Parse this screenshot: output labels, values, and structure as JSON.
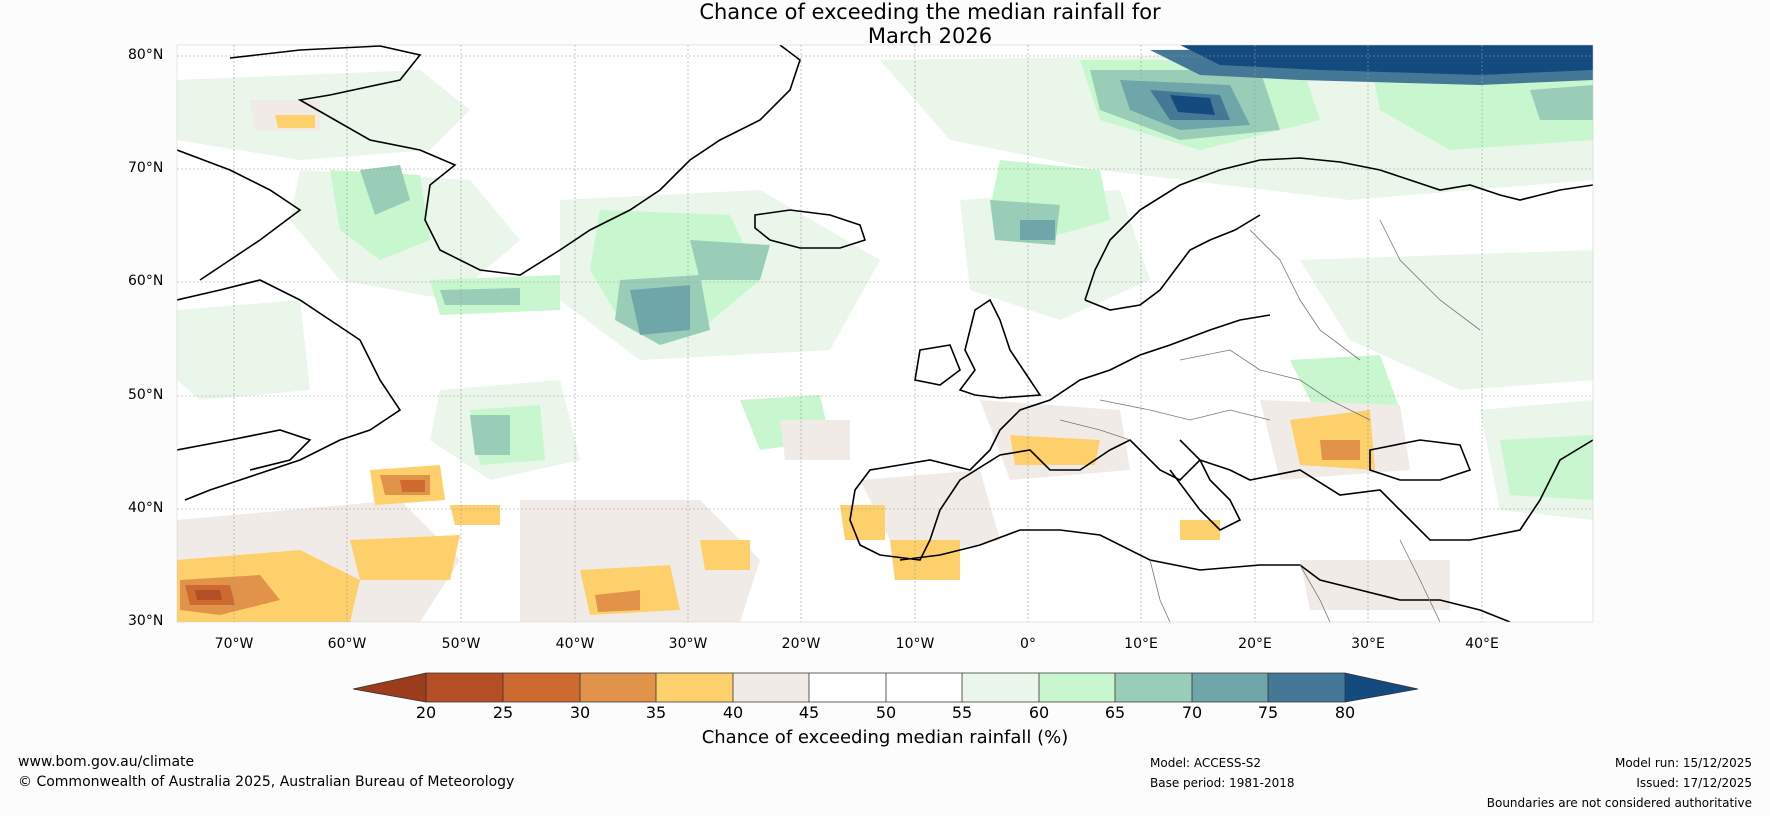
{
  "title": {
    "line1": "Chance of exceeding the median rainfall for",
    "line2": "March 2026"
  },
  "map": {
    "latitudes": [
      "80°N",
      "70°N",
      "60°N",
      "50°N",
      "40°N",
      "30°N"
    ],
    "longitudes": [
      "70°W",
      "60°W",
      "50°W",
      "40°W",
      "30°W",
      "20°W",
      "10°W",
      "0°",
      "10°E",
      "20°E",
      "30°E",
      "40°E"
    ]
  },
  "colorbar": {
    "ticks": [
      "20",
      "25",
      "30",
      "35",
      "40",
      "45",
      "50",
      "55",
      "60",
      "65",
      "70",
      "75",
      "80"
    ],
    "colors": [
      "#9b3d1c",
      "#b44e26",
      "#cd6a30",
      "#e09349",
      "#fdd06b",
      "#f1ebe8",
      "#ffffff",
      "#ffffff",
      "#e9f6e9",
      "#c8f7cf",
      "#9acdb8",
      "#6ea6a9",
      "#457896",
      "#144b7f"
    ],
    "label": "Chance of exceeding median rainfall (%)"
  },
  "footer": {
    "website": "www.bom.gov.au/climate",
    "copyright": "© Commonwealth of Australia 2025, Australian Bureau of Meteorology",
    "model": "Model: ACCESS-S2",
    "base_period": "Base period: 1981-2018",
    "model_run": "Model run: 15/12/2025",
    "issued": "Issued: 17/12/2025",
    "disclaimer": "Boundaries are not considered authoritative"
  }
}
